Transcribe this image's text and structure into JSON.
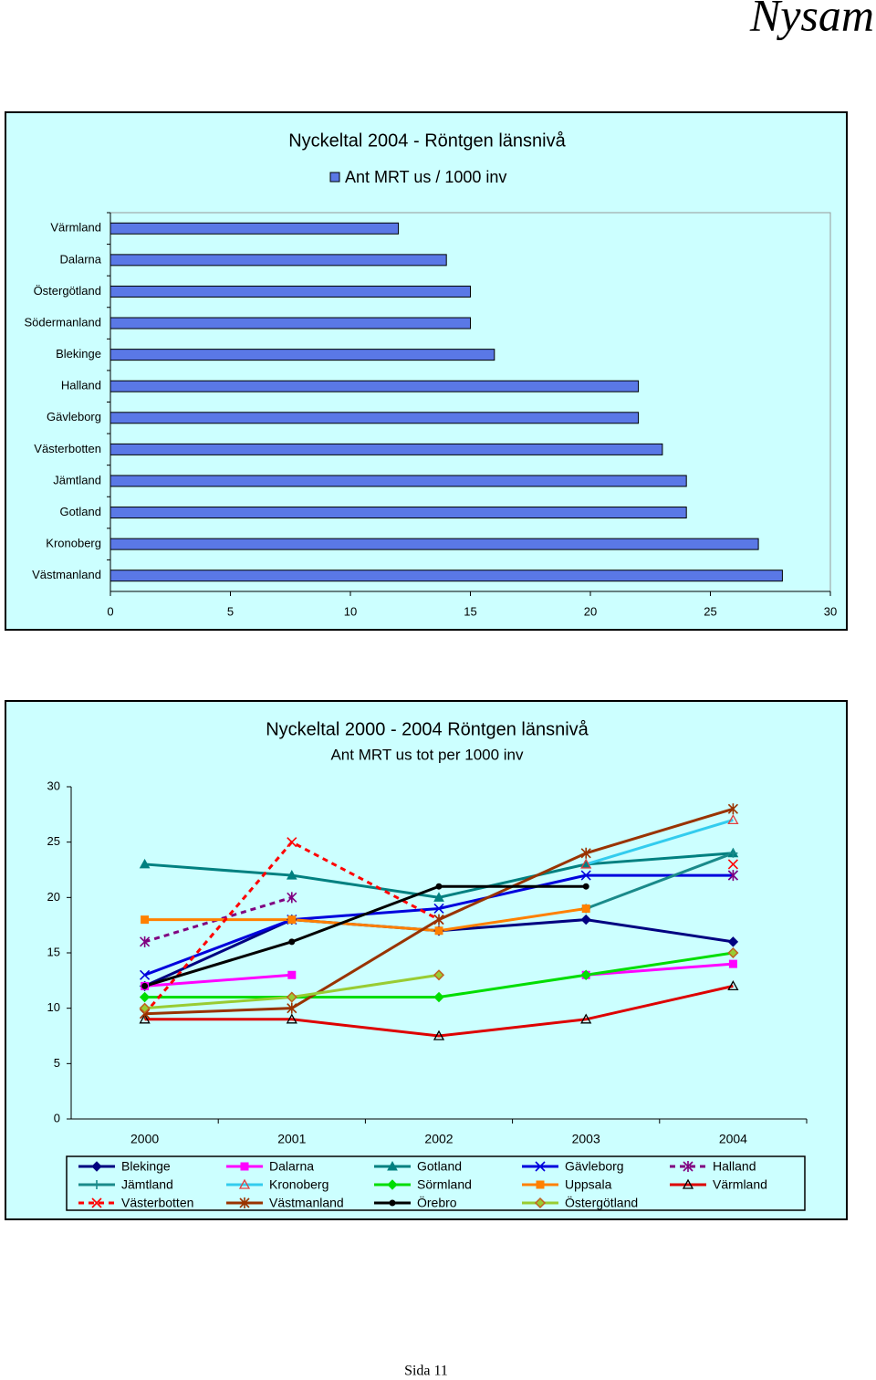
{
  "header": {
    "title": "Nysam"
  },
  "chart_data": [
    {
      "type": "bar",
      "orientation": "horizontal",
      "title": "Nyckeltal 2004  -  Röntgen länsnivå",
      "categories": [
        "Värmland",
        "Dalarna",
        "Östergötland",
        "Södermanland",
        "Blekinge",
        "Halland",
        "Gävleborg",
        "Västerbotten",
        "Jämtland",
        "Gotland",
        "Kronoberg",
        "Västmanland"
      ],
      "series": [
        {
          "name": "Ant MRT us  / 1000 inv",
          "color": "#5a78e6",
          "values": [
            12,
            14,
            15,
            15,
            16,
            22,
            22,
            23,
            24,
            24,
            27,
            28
          ]
        }
      ],
      "xlim": [
        0,
        30
      ],
      "xticks": [
        0,
        5,
        10,
        15,
        20,
        25,
        30
      ],
      "background": "#ccffff"
    },
    {
      "type": "line",
      "title": "Nyckeltal 2000 - 2004  Röntgen länsnivå",
      "subtitle": "Ant MRT us tot per 1000 inv",
      "categories": [
        "2000",
        "2001",
        "2002",
        "2003",
        "2004"
      ],
      "ylim": [
        0,
        30
      ],
      "yticks": [
        0,
        5,
        10,
        15,
        20,
        25,
        30
      ],
      "background": "#ccffff",
      "series": [
        {
          "name": "Blekinge",
          "color": "#000080",
          "marker": "diamond",
          "values": [
            12,
            18,
            17,
            18,
            16
          ]
        },
        {
          "name": "Dalarna",
          "color": "#ff00ff",
          "marker": "square",
          "values": [
            12,
            13,
            null,
            13,
            14
          ]
        },
        {
          "name": "Gotland",
          "color": "#008080",
          "marker": "triangle",
          "values": [
            23,
            22,
            20,
            23,
            24
          ]
        },
        {
          "name": "Gävleborg",
          "color": "#0000dd",
          "marker": "x",
          "values": [
            13,
            18,
            19,
            22,
            22
          ]
        },
        {
          "name": "Halland",
          "color": "#800080",
          "marker": "star",
          "dash": true,
          "values": [
            16,
            20,
            null,
            null,
            22
          ]
        },
        {
          "name": "Jämtland",
          "color": "#1a8a8a",
          "marker": "plus",
          "values": [
            null,
            null,
            null,
            19,
            24
          ]
        },
        {
          "name": "Kronoberg",
          "color": "#33ccee",
          "marker": "triangle-open",
          "marker_color": "#e04040",
          "values": [
            null,
            null,
            null,
            23,
            27
          ]
        },
        {
          "name": "Sörmland",
          "color": "#00dd00",
          "marker": "diamond",
          "values": [
            11,
            11,
            11,
            13,
            15
          ]
        },
        {
          "name": "Uppsala",
          "color": "#ff8000",
          "marker": "square",
          "values": [
            18,
            18,
            17,
            19,
            null
          ]
        },
        {
          "name": "Värmland",
          "color": "#dd0000",
          "marker": "triangle-open",
          "marker_color": "#000000",
          "values": [
            9,
            9,
            7.5,
            9,
            12
          ]
        },
        {
          "name": "Västerbotten",
          "color": "#ff0000",
          "marker": "x",
          "dash": true,
          "values": [
            9.5,
            25,
            18,
            null,
            23
          ]
        },
        {
          "name": "Västmanland",
          "color": "#993300",
          "marker": "star",
          "values": [
            9.5,
            10,
            18,
            24,
            28
          ]
        },
        {
          "name": "Örebro",
          "color": "#000000",
          "marker": "circle",
          "values": [
            12,
            16,
            21,
            21,
            null
          ]
        },
        {
          "name": "Östergötland",
          "color": "#99cc33",
          "marker": "diamond-open",
          "marker_color": "#c06020",
          "values": [
            10,
            11,
            13,
            null,
            15
          ]
        }
      ]
    }
  ],
  "footer": {
    "page": "Sida 11"
  }
}
